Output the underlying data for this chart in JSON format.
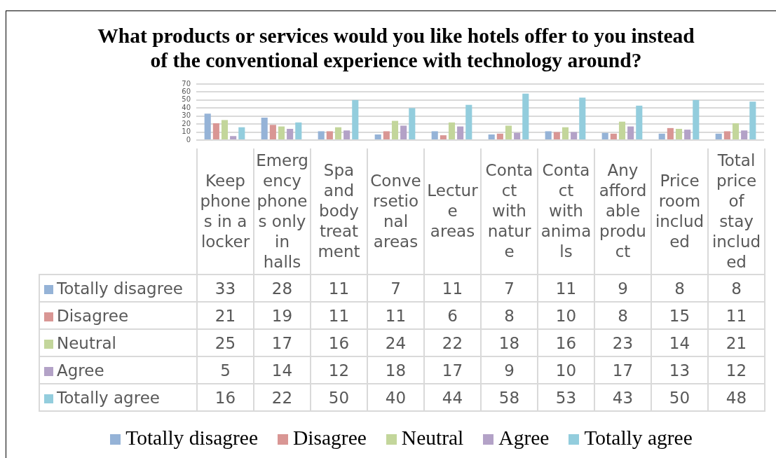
{
  "chart_data": {
    "type": "bar",
    "title": "What products or services would you like hotels offer to you instead of the conventional experience with technology around?",
    "categories": [
      "Keep phones in a locker",
      "Emergency phones only in halls",
      "Spa and body treatment",
      "Conversetional areas",
      "Lecture areas",
      "Contact with nature",
      "Contact with animals",
      "Any affordable product",
      "Price room included",
      "Total price of stay included"
    ],
    "series": [
      {
        "name": "Totally disagree",
        "color": "#95b3d7",
        "values": [
          33,
          28,
          11,
          7,
          11,
          7,
          11,
          9,
          8,
          8
        ]
      },
      {
        "name": "Disagree",
        "color": "#d99694",
        "values": [
          21,
          19,
          11,
          11,
          6,
          8,
          10,
          8,
          15,
          11
        ]
      },
      {
        "name": "Neutral",
        "color": "#c3d69b",
        "values": [
          25,
          17,
          16,
          24,
          22,
          18,
          16,
          23,
          14,
          21
        ]
      },
      {
        "name": "Agree",
        "color": "#b3a2c7",
        "values": [
          5,
          14,
          12,
          18,
          17,
          9,
          10,
          17,
          13,
          12
        ]
      },
      {
        "name": "Totally agree",
        "color": "#93cddd",
        "values": [
          16,
          22,
          50,
          40,
          44,
          58,
          53,
          43,
          50,
          48
        ]
      }
    ],
    "ylim": [
      0,
      70
    ],
    "yticks": [
      0,
      10,
      20,
      30,
      40,
      50,
      60,
      70
    ],
    "grid": "y",
    "legend": "bottom",
    "data_labels": true
  }
}
